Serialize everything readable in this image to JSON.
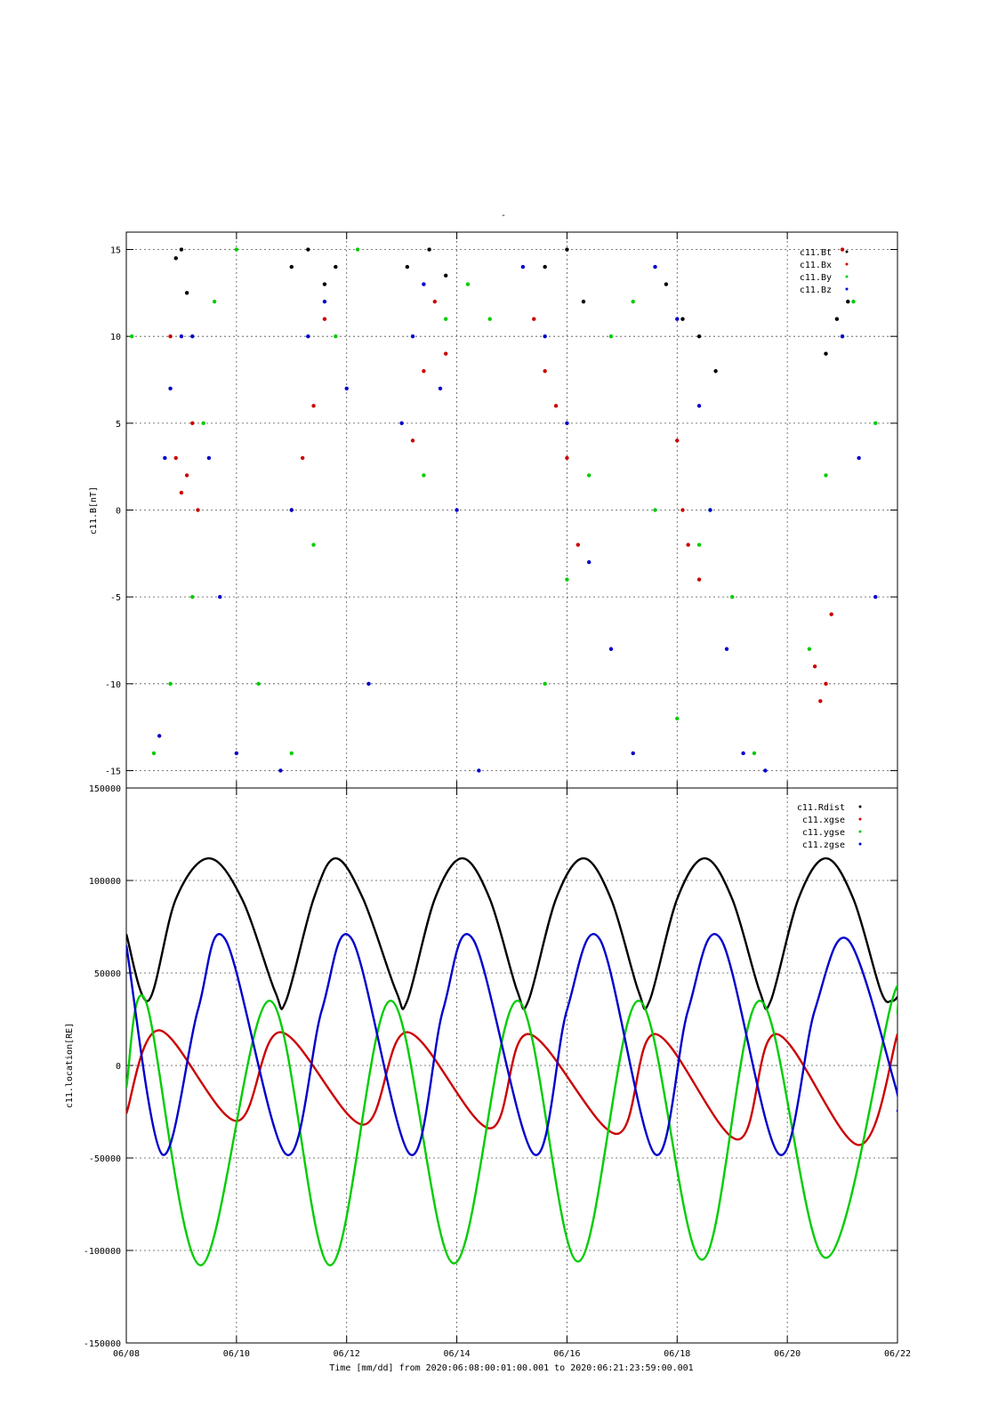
{
  "figure": {
    "title": "-",
    "time_axis": {
      "label": "Time [mm/dd]  from 2020:06:08:00:01:00.001  to  2020:06:21:23:59:00.001",
      "ticks": [
        "06/08",
        "06/10",
        "06/12",
        "06/14",
        "06/16",
        "06/18",
        "06/20",
        "06/22"
      ],
      "range_days": [
        0,
        14
      ]
    }
  },
  "chart_data": [
    {
      "type": "scatter",
      "ylabel": "c11.B[nT]",
      "ylim": [
        -16,
        16
      ],
      "yticks": [
        -15,
        -10,
        -5,
        0,
        5,
        10,
        15
      ],
      "grid": true,
      "legend_position": "top-right",
      "series": [
        {
          "name": "c11.Bt",
          "color": "#000000",
          "x": [
            0.9,
            1.0,
            1.1,
            3.0,
            3.3,
            3.6,
            3.8,
            5.1,
            5.5,
            5.8,
            7.6,
            8.0,
            8.3,
            9.8,
            10.1,
            10.4,
            10.7,
            12.7,
            12.9,
            13.1
          ],
          "y": [
            14.5,
            15,
            12.5,
            14,
            15,
            13,
            14,
            14,
            15,
            13.5,
            14,
            15,
            12,
            13,
            11,
            10,
            8,
            9,
            11,
            12
          ]
        },
        {
          "name": "c11.Bx",
          "color": "#cc0000",
          "x": [
            0.8,
            0.9,
            1.0,
            1.1,
            1.2,
            1.3,
            3.0,
            3.2,
            3.4,
            3.6,
            5.2,
            5.4,
            5.6,
            5.8,
            7.4,
            7.6,
            7.8,
            8.0,
            8.2,
            10.0,
            10.1,
            10.2,
            10.4,
            12.5,
            12.6,
            12.7,
            12.8,
            13.0
          ],
          "y": [
            10,
            3,
            1,
            2,
            5,
            0,
            0,
            3,
            6,
            11,
            4,
            8,
            12,
            9,
            11,
            8,
            6,
            3,
            -2,
            4,
            0,
            -2,
            -4,
            -9,
            -11,
            -10,
            -6,
            15
          ]
        },
        {
          "name": "c11.By",
          "color": "#00cc00",
          "x": [
            0.1,
            0.5,
            0.8,
            1.2,
            1.4,
            1.6,
            2.0,
            2.4,
            3.0,
            3.4,
            3.8,
            4.2,
            5.4,
            5.8,
            6.2,
            6.6,
            7.6,
            8.0,
            8.4,
            8.8,
            9.2,
            9.6,
            10.0,
            10.4,
            10.6,
            11.0,
            11.4,
            12.4,
            12.7,
            13.0,
            13.2,
            13.6
          ],
          "y": [
            10,
            -14,
            -10,
            -5,
            5,
            12,
            15,
            -10,
            -14,
            -2,
            10,
            15,
            2,
            11,
            13,
            11,
            -10,
            -4,
            2,
            10,
            12,
            0,
            -12,
            -2,
            0,
            -5,
            -14,
            -8,
            2,
            10,
            12,
            5
          ]
        },
        {
          "name": "c11.Bz",
          "color": "#0000cc",
          "x": [
            0.6,
            0.7,
            0.8,
            1.0,
            1.2,
            1.5,
            1.7,
            2.0,
            2.8,
            3.0,
            3.3,
            3.6,
            4.0,
            4.4,
            5.0,
            5.2,
            5.4,
            5.7,
            6.0,
            6.4,
            7.2,
            7.6,
            8.0,
            8.4,
            8.8,
            9.2,
            9.6,
            10.0,
            10.4,
            10.6,
            10.9,
            11.2,
            11.6,
            13.0,
            13.3,
            13.6
          ],
          "y": [
            -13,
            3,
            7,
            10,
            10,
            3,
            -5,
            -14,
            -15,
            0,
            10,
            12,
            7,
            -10,
            5,
            10,
            13,
            7,
            0,
            -15,
            14,
            10,
            5,
            -3,
            -8,
            -14,
            14,
            11,
            6,
            0,
            -8,
            -14,
            -15,
            10,
            3,
            -5
          ]
        }
      ]
    },
    {
      "type": "line",
      "ylabel": "c11.location[RE]",
      "ylim": [
        -150000,
        150000
      ],
      "yticks": [
        -150000,
        -100000,
        -50000,
        0,
        50000,
        100000,
        150000
      ],
      "grid": true,
      "legend_position": "top-right",
      "series": [
        {
          "name": "c11.Rdist",
          "color": "#000000",
          "x": [
            0,
            0.4,
            0.9,
            1.5,
            2.1,
            2.7,
            2.9,
            3.4,
            3.8,
            4.3,
            4.9,
            5.1,
            5.6,
            6.1,
            6.6,
            7.1,
            7.3,
            7.8,
            8.3,
            8.8,
            9.3,
            9.5,
            10.0,
            10.5,
            11.0,
            11.5,
            11.7,
            12.2,
            12.7,
            13.2,
            13.7,
            13.9,
            14.0
          ],
          "y": [
            71000,
            35000,
            90000,
            112000,
            90000,
            40000,
            35000,
            90000,
            112000,
            90000,
            40000,
            35000,
            90000,
            112000,
            90000,
            40000,
            35000,
            90000,
            112000,
            90000,
            40000,
            35000,
            90000,
            112000,
            90000,
            40000,
            35000,
            90000,
            112000,
            90000,
            40000,
            35000,
            37000
          ]
        },
        {
          "name": "c11.xgse",
          "color": "#cc0000",
          "x": [
            0,
            0.6,
            2.0,
            2.8,
            4.3,
            5.1,
            6.6,
            7.3,
            8.9,
            9.6,
            11.1,
            11.8,
            13.3,
            14.0
          ],
          "y": [
            -26000,
            19000,
            -30000,
            18000,
            -32000,
            18000,
            -34000,
            17000,
            -37000,
            17000,
            -40000,
            17000,
            -43000,
            17000
          ]
        },
        {
          "name": "c11.ygse",
          "color": "#00cc00",
          "x": [
            0,
            0.35,
            1.35,
            2.6,
            3.7,
            4.8,
            5.95,
            7.1,
            8.2,
            9.3,
            10.45,
            11.5,
            12.7,
            13.9,
            14.0
          ],
          "y": [
            -12000,
            35000,
            -108000,
            35000,
            -108000,
            35000,
            -107000,
            35000,
            -106000,
            35000,
            -105000,
            35000,
            -104000,
            35000,
            28000
          ]
        },
        {
          "name": "c11.zgse",
          "color": "#0000cc",
          "x": [
            0,
            0.65,
            1.3,
            1.8,
            2.9,
            3.55,
            4.1,
            5.15,
            5.75,
            6.3,
            7.4,
            8.0,
            8.6,
            9.6,
            10.2,
            10.8,
            11.85,
            12.5,
            13.1,
            13.95,
            14.0
          ],
          "y": [
            65000,
            -48000,
            30000,
            68000,
            -48000,
            30000,
            68000,
            -48000,
            30000,
            68000,
            -48000,
            30000,
            68000,
            -48000,
            30000,
            68000,
            -48000,
            30000,
            68000,
            -10000,
            -25000
          ]
        }
      ]
    }
  ]
}
